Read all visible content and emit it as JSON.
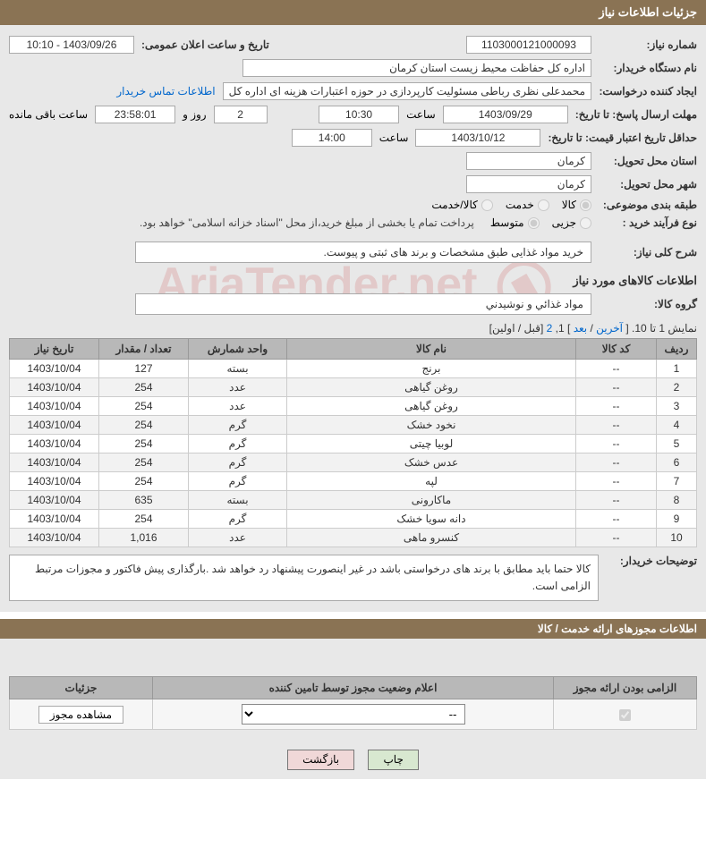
{
  "header": {
    "title": "جزئیات اطلاعات نیاز"
  },
  "form": {
    "need_no_label": "شماره نیاز:",
    "need_no": "1103000121000093",
    "announce_label": "تاریخ و ساعت اعلان عمومی:",
    "announce_value": "1403/09/26 - 10:10",
    "buyer_org_label": "نام دستگاه خریدار:",
    "buyer_org": "اداره کل حفاظت محیط زیست استان کرمان",
    "requester_label": "ایجاد کننده درخواست:",
    "requester": "محمدعلی نظری رباطی مسئولیت کارپردازی در حوزه اعتبارات هزینه ای اداره کل",
    "contact_link": "اطلاعات تماس خریدار",
    "deadline_label": "مهلت ارسال پاسخ: تا تاریخ:",
    "deadline_date": "1403/09/29",
    "time_label": "ساعت",
    "deadline_time": "10:30",
    "days_count": "2",
    "days_text": "روز و",
    "countdown": "23:58:01",
    "remaining_text": "ساعت باقی مانده",
    "validity_label": "حداقل تاریخ اعتبار قیمت: تا تاریخ:",
    "validity_date": "1403/10/12",
    "validity_time": "14:00",
    "delivery_prov_label": "استان محل تحویل:",
    "delivery_prov": "کرمان",
    "delivery_city_label": "شهر محل تحویل:",
    "delivery_city": "کرمان",
    "category_label": "طبقه بندی موضوعی:",
    "cat_goods": "کالا",
    "cat_service": "خدمت",
    "cat_goods_service": "کالا/خدمت",
    "process_label": "نوع فرآیند خرید :",
    "proc_partial": "جزیی",
    "proc_medium": "متوسط",
    "process_note": "پرداخت تمام یا بخشی از مبلغ خرید،از محل \"اسناد خزانه اسلامی\" خواهد بود.",
    "desc_label": "شرح کلی نیاز:",
    "desc_text": "خرید مواد غذایی طبق مشخصات و برند های ثبتی و پیوست."
  },
  "goods_section": {
    "title": "اطلاعات کالاهای مورد نیاز",
    "group_label": "گروه کالا:",
    "group_value": "مواد غذائي و نوشیدني"
  },
  "pagination": {
    "text_prefix": "نمایش 1 تا 10. [ ",
    "last": "آخرین",
    "sep1": " / ",
    "next": "بعد",
    "mid": " ] 1, ",
    "page2": "2",
    "suffix": " [قبل / اولین]"
  },
  "table": {
    "headers": {
      "row": "ردیف",
      "code": "کد کالا",
      "name": "نام کالا",
      "unit": "واحد شمارش",
      "qty": "تعداد / مقدار",
      "date": "تاریخ نیاز"
    },
    "rows": [
      {
        "n": "1",
        "code": "--",
        "name": "برنج",
        "unit": "بسته",
        "qty": "127",
        "date": "1403/10/04"
      },
      {
        "n": "2",
        "code": "--",
        "name": "روغن گیاهی",
        "unit": "عدد",
        "qty": "254",
        "date": "1403/10/04"
      },
      {
        "n": "3",
        "code": "--",
        "name": "روغن گیاهی",
        "unit": "عدد",
        "qty": "254",
        "date": "1403/10/04"
      },
      {
        "n": "4",
        "code": "--",
        "name": "نخود خشک",
        "unit": "گرم",
        "qty": "254",
        "date": "1403/10/04"
      },
      {
        "n": "5",
        "code": "--",
        "name": "لوبیا چیتی",
        "unit": "گرم",
        "qty": "254",
        "date": "1403/10/04"
      },
      {
        "n": "6",
        "code": "--",
        "name": "عدس خشک",
        "unit": "گرم",
        "qty": "254",
        "date": "1403/10/04"
      },
      {
        "n": "7",
        "code": "--",
        "name": "لپه",
        "unit": "گرم",
        "qty": "254",
        "date": "1403/10/04"
      },
      {
        "n": "8",
        "code": "--",
        "name": "ماکارونی",
        "unit": "بسته",
        "qty": "635",
        "date": "1403/10/04"
      },
      {
        "n": "9",
        "code": "--",
        "name": "دانه سویا خشک",
        "unit": "گرم",
        "qty": "254",
        "date": "1403/10/04"
      },
      {
        "n": "10",
        "code": "--",
        "name": "کنسرو ماهی",
        "unit": "عدد",
        "qty": "1,016",
        "date": "1403/10/04"
      }
    ]
  },
  "buyer_note": {
    "label": "توضیحات خریدار:",
    "text": "کالا حتما باید مطابق با برند های درخواستی باشد در غیر اینصورت پیشنهاد رد خواهد شد .بارگذاری پیش فاکتور و مجوزات مرتبط الزامی است."
  },
  "license": {
    "divider": "اطلاعات مجوزهای ارائه خدمت / کالا",
    "headers": {
      "mandatory": "الزامی بودن ارائه مجوز",
      "status": "اعلام وضعیت مجوز توسط تامین کننده",
      "details": "جزئیات"
    },
    "select_placeholder": "--",
    "view_btn": "مشاهده مجوز"
  },
  "footer": {
    "print": "چاپ",
    "back": "بازگشت"
  },
  "watermark": "AriaTender.net"
}
